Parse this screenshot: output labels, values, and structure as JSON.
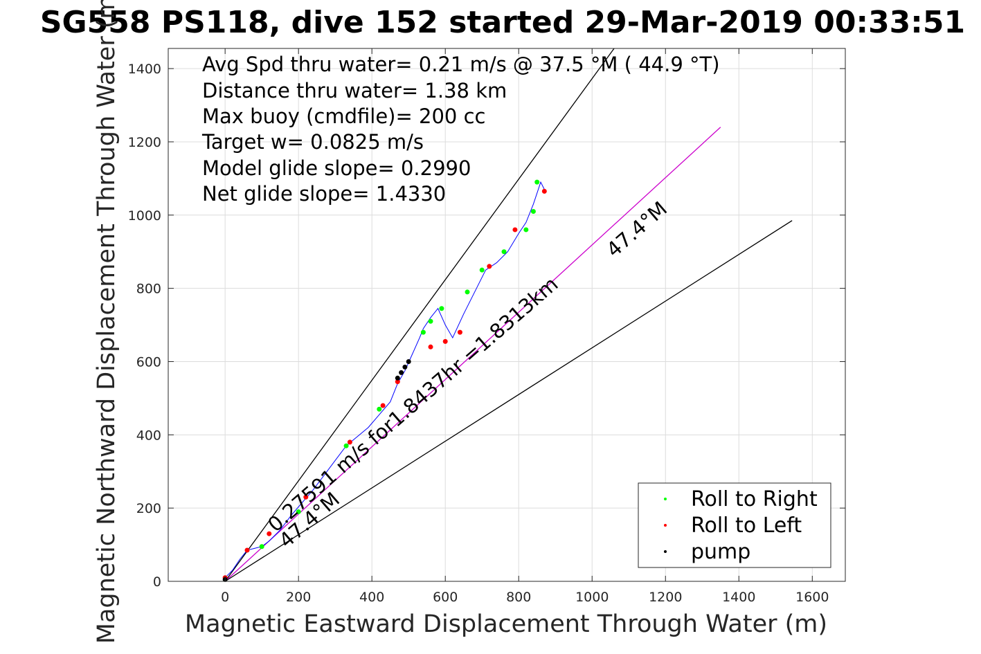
{
  "chart_data": {
    "type": "line",
    "title": "SG558 PS118, dive 152 started 29-Mar-2019 00:33:51",
    "xlabel": "Magnetic Eastward Displacement Through Water (m)",
    "ylabel": "Magnetic Northward Displacement Through Water (m)",
    "xlim": [
      -155,
      1690
    ],
    "ylim": [
      0,
      1455
    ],
    "xticks": [
      0,
      200,
      400,
      600,
      800,
      1000,
      1200,
      1400,
      1600
    ],
    "yticks": [
      0,
      200,
      400,
      600,
      800,
      1000,
      1200,
      1400
    ],
    "grid": true,
    "info_lines": [
      "Avg Spd thru water=  0.21 m/s @  37.5 °M ( 44.9 °T)",
      "Distance thru water=  1.38 km",
      "Max buoy (cmdfile)= 200 cc",
      "Target w= 0.0825 m/s",
      "Model glide slope= 0.2990",
      "Net glide slope= 1.4330"
    ],
    "annotations": {
      "speed_label": "0.27591 m/s for1.8437hr =1.8313km",
      "heading_label_upper": "47.4°M",
      "heading_label_lower": "47.4°M"
    },
    "reference_lines": [
      {
        "name": "upper-bound",
        "color": "#000000",
        "x": [
          0,
          1060
        ],
        "y": [
          0,
          1455
        ]
      },
      {
        "name": "heading",
        "color": "#cc00cc",
        "x": [
          0,
          1350
        ],
        "y": [
          0,
          1240
        ]
      },
      {
        "name": "lower-bound",
        "color": "#000000",
        "x": [
          0,
          1545
        ],
        "y": [
          0,
          985
        ]
      }
    ],
    "track": {
      "color": "#0000ff",
      "x": [
        0,
        20,
        40,
        60,
        80,
        100,
        120,
        150,
        180,
        210,
        240,
        270,
        300,
        330,
        360,
        390,
        420,
        450,
        470,
        490,
        510,
        530,
        540,
        560,
        580,
        600,
        620,
        650,
        680,
        710,
        740,
        770,
        800,
        820,
        840,
        850,
        860,
        870
      ],
      "y": [
        10,
        30,
        60,
        85,
        90,
        95,
        110,
        140,
        180,
        215,
        250,
        290,
        330,
        370,
        395,
        420,
        455,
        490,
        540,
        575,
        620,
        665,
        690,
        720,
        745,
        700,
        665,
        730,
        790,
        850,
        870,
        900,
        950,
        980,
        1030,
        1060,
        1090,
        1070
      ]
    },
    "series": [
      {
        "name": "Roll to Right",
        "color": "#00ff00",
        "x": [
          100,
          200,
          330,
          420,
          540,
          560,
          590,
          660,
          700,
          760,
          820,
          840,
          850
        ],
        "y": [
          95,
          190,
          370,
          470,
          680,
          710,
          745,
          790,
          850,
          900,
          960,
          1010,
          1090
        ]
      },
      {
        "name": "Roll to Left",
        "color": "#ff0000",
        "x": [
          0,
          60,
          120,
          220,
          340,
          430,
          470,
          560,
          600,
          640,
          720,
          790,
          870
        ],
        "y": [
          10,
          85,
          130,
          230,
          380,
          480,
          545,
          640,
          655,
          680,
          860,
          960,
          1065
        ]
      },
      {
        "name": "pump",
        "color": "#000000",
        "x": [
          0,
          470,
          480,
          490,
          500
        ],
        "y": [
          5,
          555,
          570,
          585,
          600
        ]
      }
    ],
    "legend": {
      "position": "bottom-right",
      "entries": [
        "Roll to Right",
        "Roll to Left",
        "pump"
      ]
    }
  }
}
